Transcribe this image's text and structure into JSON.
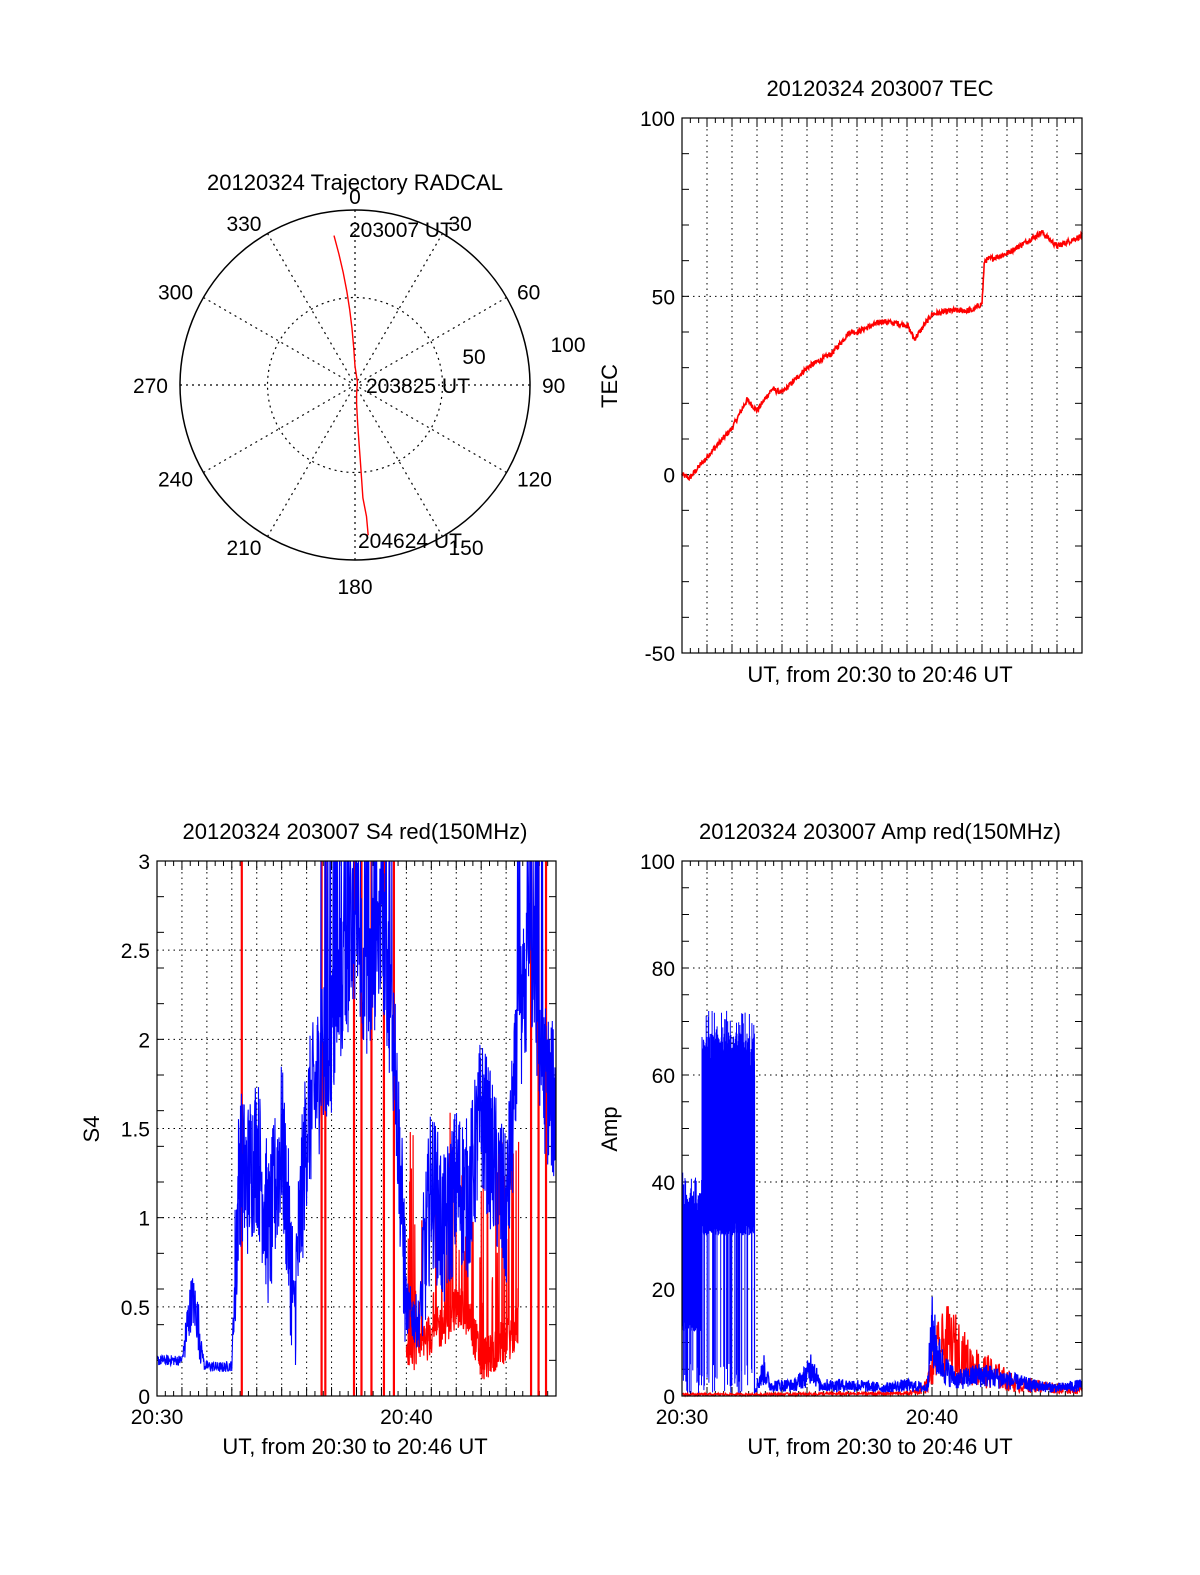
{
  "colors": {
    "red_channel": "#ff0000",
    "blue_channel": "#0000ff",
    "grid": "#000000"
  },
  "chart_data": [
    {
      "id": "trajectory",
      "type": "polar",
      "title": "20120324 Trajectory RADCAL",
      "angle_labels": [
        "0",
        "30",
        "60",
        "90",
        "120",
        "150",
        "180",
        "210",
        "240",
        "270",
        "300",
        "330"
      ],
      "radial_labels": [
        "50",
        "100"
      ],
      "r_max": 100,
      "annotations": [
        "203007 UT",
        "203825 UT",
        "204624 UT"
      ],
      "track_azimuth_elevation": [
        [
          352,
          10
        ],
        [
          353,
          20
        ],
        [
          354,
          30
        ],
        [
          355,
          40
        ],
        [
          356,
          50
        ],
        [
          357,
          60
        ],
        [
          358,
          70
        ],
        [
          360,
          80
        ],
        [
          40,
          88
        ],
        [
          170,
          85
        ],
        [
          175,
          80
        ],
        [
          176,
          70
        ],
        [
          176,
          60
        ],
        [
          176,
          50
        ],
        [
          176,
          40
        ],
        [
          176,
          30
        ],
        [
          175,
          20
        ],
        [
          175,
          10
        ]
      ]
    },
    {
      "id": "tec",
      "type": "line",
      "title": "20120324 203007 TEC",
      "ylabel": "TEC",
      "xlabel": "UT, from 20:30 to 20:46 UT",
      "ylim": [
        -50,
        100
      ],
      "xlim": [
        0,
        16
      ],
      "yticks": [
        "-50",
        "0",
        "50",
        "100"
      ],
      "series": [
        {
          "name": "TEC",
          "color": "#ff0000",
          "x": [
            0,
            0.3,
            1,
            2,
            2.6,
            3,
            3.6,
            4,
            5,
            6,
            6.7,
            7,
            8,
            9,
            9.3,
            10,
            10.8,
            11.6,
            12,
            12.1,
            13,
            14.4,
            15,
            16
          ],
          "y": [
            0,
            -1,
            5,
            13,
            21,
            18,
            24,
            23,
            30,
            34,
            40,
            40,
            43,
            42,
            38,
            45,
            46,
            46,
            48,
            60,
            62,
            68,
            64,
            67
          ]
        }
      ]
    },
    {
      "id": "s4",
      "type": "line",
      "title": "20120324 203007 S4 red(150MHz)",
      "ylabel": "S4",
      "xlabel": "UT, from 20:30 to 20:46 UT",
      "ylim": [
        0,
        3
      ],
      "xlim": [
        0,
        16
      ],
      "yticks": [
        "0",
        "0.5",
        "1",
        "1.5",
        "2",
        "2.5",
        "3"
      ],
      "xticks": [
        {
          "x": 0,
          "label": "20:30"
        },
        {
          "x": 10,
          "label": "20:40"
        }
      ],
      "series": [
        {
          "name": "S4 blue",
          "color": "#0000ff",
          "x": [
            0,
            1,
            1.4,
            1.6,
            1.9,
            2.6,
            3,
            3.3,
            3.6,
            4,
            4.5,
            5,
            5.5,
            6,
            6.5,
            7,
            7.5,
            8,
            8.5,
            9,
            9.5,
            10,
            10.5,
            11,
            11.5,
            12,
            12.5,
            13,
            13.5,
            14,
            14.5,
            15,
            15.5,
            16
          ],
          "y": [
            0.2,
            0.2,
            0.55,
            0.45,
            0.17,
            0.16,
            0.17,
            1.3,
            1.2,
            1.4,
            0.9,
            1.45,
            0.5,
            1.5,
            1.8,
            2.0,
            2.4,
            2.6,
            2.3,
            2.7,
            2.0,
            0.5,
            0.4,
            1.2,
            0.9,
            1.2,
            1.1,
            1.6,
            1.3,
            1.0,
            2.0,
            2.5,
            1.8,
            1.6
          ]
        },
        {
          "name": "S4 red",
          "color": "#ff0000",
          "x": [
            10,
            10.5,
            11,
            11.5,
            12,
            12.5,
            13,
            13.5,
            14,
            14.5
          ],
          "y": [
            0.3,
            0.25,
            0.35,
            0.4,
            0.5,
            0.45,
            0.2,
            0.25,
            0.3,
            0.4
          ],
          "spikes_x": [
            3.4,
            6.6,
            6.75,
            7.9,
            8.2,
            8.6,
            9.1,
            9.5,
            15.0,
            15.3,
            15.6
          ]
        }
      ]
    },
    {
      "id": "amp",
      "type": "line",
      "title": "20120324 203007 Amp red(150MHz)",
      "ylabel": "Amp",
      "xlabel": "UT, from 20:30 to 20:46 UT",
      "ylim": [
        0,
        100
      ],
      "xlim": [
        0,
        16
      ],
      "yticks": [
        "0",
        "20",
        "40",
        "60",
        "80",
        "100"
      ],
      "xticks": [
        {
          "x": 0,
          "label": "20:30"
        },
        {
          "x": 10,
          "label": "20:40"
        }
      ],
      "series": [
        {
          "name": "Amp blue",
          "color": "#0000ff",
          "bands": [
            {
              "x0": 0,
              "x1": 0.8,
              "low": 12,
              "high": 38,
              "min": 0
            },
            {
              "x0": 0.8,
              "x1": 2.9,
              "low": 30,
              "high": 68,
              "min": 0
            }
          ],
          "x": [
            2.9,
            3.0,
            3.3,
            3.5,
            4.5,
            5,
            5.2,
            5.5,
            7,
            8,
            9,
            9.8,
            10,
            10.2,
            10.5,
            11,
            12,
            13,
            14,
            15,
            16
          ],
          "y": [
            1,
            2,
            5,
            2,
            2,
            4,
            6,
            2,
            2,
            1.5,
            2,
            1.5,
            12,
            8,
            5,
            3,
            4,
            3,
            2,
            1.5,
            2
          ]
        },
        {
          "name": "Amp red",
          "color": "#ff0000",
          "x": [
            0,
            2.9,
            9,
            9.5,
            9.8,
            10.2,
            10.6,
            11,
            11.5,
            12,
            12.5,
            13,
            13.5,
            14,
            15,
            16
          ],
          "y": [
            0.3,
            0.3,
            0.5,
            1,
            2,
            8,
            10,
            9,
            6,
            5,
            4,
            3,
            2,
            2,
            1.5,
            1
          ]
        }
      ]
    }
  ]
}
